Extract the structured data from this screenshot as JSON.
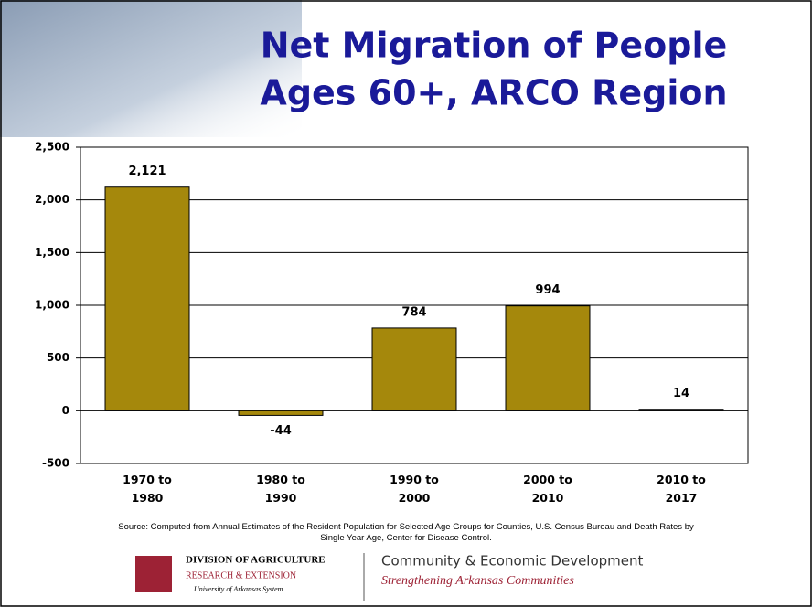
{
  "chart_data": {
    "type": "bar",
    "title_lines": [
      "Net Migration of People",
      "Ages 60+, ARCO Region"
    ],
    "categories": [
      "1970 to 1980",
      "1980 to 1990",
      "1990 to 2000",
      "2000 to 2010",
      "2010 to 2017"
    ],
    "values": [
      2121,
      -44,
      784,
      994,
      14
    ],
    "value_labels": [
      "2,121",
      "-44",
      "784",
      "994",
      "14"
    ],
    "color": "#a5880c",
    "ylim": [
      -500,
      2500
    ],
    "yticks": [
      {
        "value": -500,
        "label": "-500"
      },
      0,
      500,
      {
        "value": 1000,
        "label": "1,000"
      },
      {
        "value": 1500,
        "label": "1,500"
      },
      {
        "value": 2000,
        "label": "2,000"
      },
      {
        "value": 2500,
        "label": "2,500"
      }
    ],
    "grid": true
  },
  "footer": {
    "source": "Source: Computed from Annual Estimates of the Resident Population for Selected Age Groups for Counties, U.S. Census Bureau and Death Rates by Single Year Age, Center for Disease Control.",
    "logo_line1": "DIVISION OF AGRICULTURE",
    "logo_line2": "RESEARCH & EXTENSION",
    "logo_line3": "University of Arkansas System",
    "unit": "Community & Economic Development",
    "tagline": "Strengthening Arkansas Communities"
  }
}
